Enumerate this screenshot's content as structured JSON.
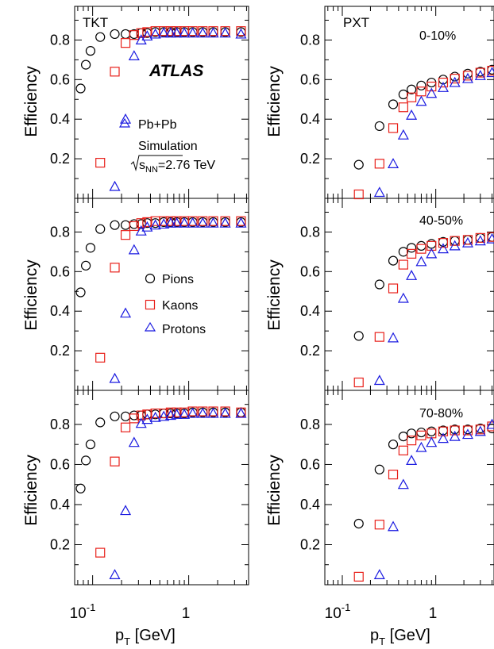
{
  "figure": {
    "experiment_label": "ATLAS",
    "legend_system": "Pb+Pb",
    "legend_sim": "Simulation",
    "energy_prefix": "s",
    "energy_sub": "NN",
    "energy_value": "=2.76 TeV",
    "xlabel_p": "p",
    "xlabel_sub": "T",
    "xlabel_unit": " [GeV]",
    "ylabel": "Efficiency",
    "tick_x_01": "10",
    "tick_x_01_exp": "-1",
    "tick_x_1": "1",
    "y_ticks": [
      "0.2",
      "0.4",
      "0.6",
      "0.8"
    ],
    "tracking_left": "TKT",
    "tracking_right": "PXT",
    "centrality": [
      "0-10%",
      "40-50%",
      "70-80%"
    ]
  },
  "colors": {
    "Pions": "#000000",
    "Kaons": "#e8201a",
    "Protons": "#1a1ae0",
    "axis": "#000000"
  },
  "chart_data": {
    "type": "scatter",
    "x_scale": "log",
    "xlim": [
      0.065,
      4.2
    ],
    "ylim": [
      0,
      0.97
    ],
    "xlabel": "pT [GeV]",
    "ylabel": "Efficiency",
    "legend": [
      "Pions",
      "Kaons",
      "Protons"
    ],
    "panels": [
      {
        "tracking": "TKT",
        "centrality": "0-10%",
        "series": [
          {
            "name": "Pions",
            "marker": "circle",
            "x": [
              0.075,
              0.085,
              0.095,
              0.12,
              0.17,
              0.22,
              0.27,
              0.32,
              0.37,
              0.45,
              0.55,
              0.65,
              0.75,
              0.9,
              1.1,
              1.4,
              1.8,
              2.4,
              3.5
            ],
            "y": [
              0.555,
              0.675,
              0.745,
              0.815,
              0.83,
              0.83,
              0.83,
              0.835,
              0.835,
              0.84,
              0.84,
              0.84,
              0.84,
              0.84,
              0.84,
              0.84,
              0.84,
              0.84,
              0.84
            ]
          },
          {
            "name": "Kaons",
            "marker": "square",
            "x": [
              0.12,
              0.17,
              0.22,
              0.27,
              0.32,
              0.37,
              0.45,
              0.55,
              0.65,
              0.75,
              0.9,
              1.1,
              1.4,
              1.8,
              2.4,
              3.5
            ],
            "y": [
              0.18,
              0.64,
              0.785,
              0.825,
              0.835,
              0.84,
              0.845,
              0.845,
              0.845,
              0.845,
              0.845,
              0.845,
              0.845,
              0.845,
              0.845,
              0.845
            ]
          },
          {
            "name": "Protons",
            "marker": "triangle",
            "x": [
              0.17,
              0.22,
              0.27,
              0.32,
              0.37,
              0.45,
              0.55,
              0.65,
              0.75,
              0.9,
              1.1,
              1.4,
              1.8,
              2.4,
              3.5
            ],
            "y": [
              0.06,
              0.4,
              0.72,
              0.8,
              0.82,
              0.83,
              0.835,
              0.835,
              0.835,
              0.835,
              0.835,
              0.835,
              0.835,
              0.835,
              0.83
            ]
          }
        ]
      },
      {
        "tracking": "PXT",
        "centrality": "0-10%",
        "series": [
          {
            "name": "Pions",
            "marker": "circle",
            "x": [
              0.15,
              0.25,
              0.35,
              0.45,
              0.55,
              0.7,
              0.9,
              1.2,
              1.6,
              2.2,
              3.0,
              4.0
            ],
            "y": [
              0.17,
              0.365,
              0.475,
              0.525,
              0.55,
              0.57,
              0.585,
              0.6,
              0.615,
              0.63,
              0.64,
              0.65
            ]
          },
          {
            "name": "Kaons",
            "marker": "square",
            "x": [
              0.15,
              0.25,
              0.35,
              0.45,
              0.55,
              0.7,
              0.9,
              1.2,
              1.6,
              2.2,
              3.0,
              4.0
            ],
            "y": [
              0.02,
              0.175,
              0.355,
              0.46,
              0.51,
              0.54,
              0.565,
              0.585,
              0.605,
              0.62,
              0.635,
              0.645
            ]
          },
          {
            "name": "Protons",
            "marker": "triangle",
            "x": [
              0.25,
              0.35,
              0.45,
              0.55,
              0.7,
              0.9,
              1.2,
              1.6,
              2.2,
              3.0,
              4.0
            ],
            "y": [
              0.03,
              0.175,
              0.32,
              0.42,
              0.49,
              0.53,
              0.56,
              0.585,
              0.605,
              0.62,
              0.635
            ]
          }
        ]
      },
      {
        "tracking": "TKT",
        "centrality": "40-50%",
        "series": [
          {
            "name": "Pions",
            "marker": "circle",
            "x": [
              0.075,
              0.085,
              0.095,
              0.12,
              0.17,
              0.22,
              0.27,
              0.32,
              0.37,
              0.45,
              0.55,
              0.65,
              0.75,
              0.9,
              1.1,
              1.4,
              1.8,
              2.4,
              3.5
            ],
            "y": [
              0.495,
              0.63,
              0.72,
              0.815,
              0.835,
              0.835,
              0.84,
              0.84,
              0.845,
              0.845,
              0.85,
              0.85,
              0.85,
              0.85,
              0.85,
              0.85,
              0.85,
              0.85,
              0.85
            ]
          },
          {
            "name": "Kaons",
            "marker": "square",
            "x": [
              0.12,
              0.17,
              0.22,
              0.27,
              0.32,
              0.37,
              0.45,
              0.55,
              0.65,
              0.75,
              0.9,
              1.1,
              1.4,
              1.8,
              2.4,
              3.5
            ],
            "y": [
              0.165,
              0.62,
              0.785,
              0.83,
              0.845,
              0.85,
              0.855,
              0.855,
              0.855,
              0.855,
              0.855,
              0.855,
              0.855,
              0.855,
              0.855,
              0.855
            ]
          },
          {
            "name": "Protons",
            "marker": "triangle",
            "x": [
              0.17,
              0.22,
              0.27,
              0.32,
              0.37,
              0.45,
              0.55,
              0.65,
              0.75,
              0.9,
              1.1,
              1.4,
              1.8,
              2.4,
              3.5
            ],
            "y": [
              0.06,
              0.39,
              0.71,
              0.805,
              0.825,
              0.835,
              0.84,
              0.845,
              0.845,
              0.845,
              0.845,
              0.845,
              0.845,
              0.845,
              0.845
            ]
          }
        ]
      },
      {
        "tracking": "PXT",
        "centrality": "40-50%",
        "series": [
          {
            "name": "Pions",
            "marker": "circle",
            "x": [
              0.15,
              0.25,
              0.35,
              0.45,
              0.55,
              0.7,
              0.9,
              1.2,
              1.6,
              2.2,
              3.0,
              4.0
            ],
            "y": [
              0.275,
              0.535,
              0.655,
              0.7,
              0.72,
              0.73,
              0.74,
              0.75,
              0.755,
              0.76,
              0.77,
              0.775
            ]
          },
          {
            "name": "Kaons",
            "marker": "square",
            "x": [
              0.15,
              0.25,
              0.35,
              0.45,
              0.55,
              0.7,
              0.9,
              1.2,
              1.6,
              2.2,
              3.0,
              4.0
            ],
            "y": [
              0.04,
              0.27,
              0.515,
              0.635,
              0.69,
              0.715,
              0.73,
              0.745,
              0.755,
              0.76,
              0.77,
              0.775
            ]
          },
          {
            "name": "Protons",
            "marker": "triangle",
            "x": [
              0.25,
              0.35,
              0.45,
              0.55,
              0.7,
              0.9,
              1.2,
              1.6,
              2.2,
              3.0,
              4.0
            ],
            "y": [
              0.05,
              0.265,
              0.465,
              0.58,
              0.65,
              0.69,
              0.715,
              0.73,
              0.745,
              0.755,
              0.765
            ]
          }
        ]
      },
      {
        "tracking": "TKT",
        "centrality": "70-80%",
        "series": [
          {
            "name": "Pions",
            "marker": "circle",
            "x": [
              0.075,
              0.085,
              0.095,
              0.12,
              0.17,
              0.22,
              0.27,
              0.32,
              0.37,
              0.45,
              0.55,
              0.65,
              0.75,
              0.9,
              1.1,
              1.4,
              1.8,
              2.4,
              3.5
            ],
            "y": [
              0.48,
              0.62,
              0.7,
              0.81,
              0.84,
              0.84,
              0.845,
              0.845,
              0.85,
              0.85,
              0.855,
              0.855,
              0.855,
              0.855,
              0.86,
              0.86,
              0.86,
              0.86,
              0.86
            ]
          },
          {
            "name": "Kaons",
            "marker": "square",
            "x": [
              0.12,
              0.17,
              0.22,
              0.27,
              0.32,
              0.37,
              0.45,
              0.55,
              0.65,
              0.75,
              0.9,
              1.1,
              1.4,
              1.8,
              2.4,
              3.5
            ],
            "y": [
              0.16,
              0.615,
              0.785,
              0.83,
              0.845,
              0.85,
              0.855,
              0.855,
              0.86,
              0.86,
              0.86,
              0.865,
              0.865,
              0.865,
              0.865,
              0.86
            ]
          },
          {
            "name": "Protons",
            "marker": "triangle",
            "x": [
              0.17,
              0.22,
              0.27,
              0.32,
              0.37,
              0.45,
              0.55,
              0.65,
              0.75,
              0.9,
              1.1,
              1.4,
              1.8,
              2.4,
              3.5
            ],
            "y": [
              0.05,
              0.37,
              0.71,
              0.805,
              0.825,
              0.835,
              0.84,
              0.845,
              0.85,
              0.85,
              0.855,
              0.855,
              0.855,
              0.855,
              0.855
            ]
          }
        ]
      },
      {
        "tracking": "PXT",
        "centrality": "70-80%",
        "series": [
          {
            "name": "Pions",
            "marker": "circle",
            "x": [
              0.15,
              0.25,
              0.35,
              0.45,
              0.55,
              0.7,
              0.9,
              1.2,
              1.6,
              2.2,
              3.0,
              4.0
            ],
            "y": [
              0.305,
              0.575,
              0.7,
              0.74,
              0.755,
              0.76,
              0.765,
              0.77,
              0.775,
              0.775,
              0.78,
              0.78
            ]
          },
          {
            "name": "Kaons",
            "marker": "square",
            "x": [
              0.15,
              0.25,
              0.35,
              0.45,
              0.55,
              0.7,
              0.9,
              1.2,
              1.6,
              2.2,
              3.0,
              4.0
            ],
            "y": [
              0.04,
              0.3,
              0.55,
              0.67,
              0.72,
              0.745,
              0.755,
              0.765,
              0.77,
              0.77,
              0.775,
              0.79
            ]
          },
          {
            "name": "Protons",
            "marker": "triangle",
            "x": [
              0.25,
              0.35,
              0.45,
              0.55,
              0.7,
              0.9,
              1.2,
              1.6,
              2.2,
              3.0,
              4.0
            ],
            "y": [
              0.05,
              0.29,
              0.5,
              0.62,
              0.685,
              0.71,
              0.73,
              0.74,
              0.75,
              0.765,
              0.8
            ]
          }
        ]
      }
    ]
  }
}
